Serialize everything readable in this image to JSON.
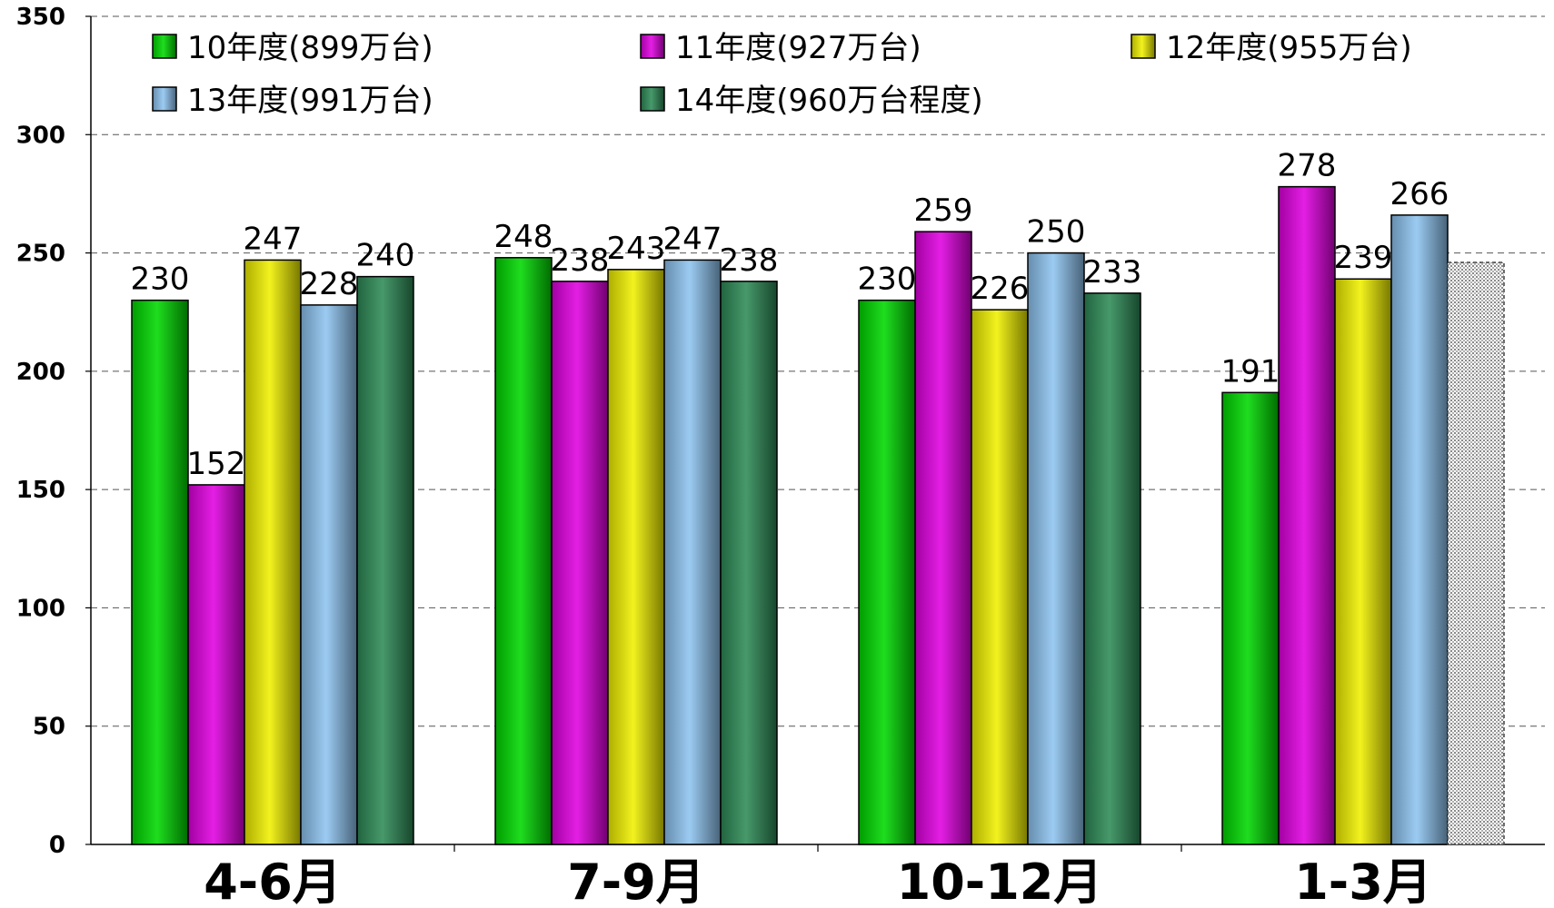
{
  "chart_data": {
    "type": "bar",
    "categories": [
      "4-6月",
      "7-9月",
      "10-12月",
      "1-3月"
    ],
    "series": [
      {
        "name": "10年度(899万台)",
        "values": [
          230,
          248,
          230,
          191
        ],
        "color": "#00d800"
      },
      {
        "name": "11年度(927万台)",
        "values": [
          152,
          238,
          259,
          278
        ],
        "color": "#e000e0"
      },
      {
        "name": "12年度(955万台)",
        "values": [
          247,
          243,
          226,
          239
        ],
        "color": "#f0f000"
      },
      {
        "name": "13年度(991万台)",
        "values": [
          228,
          247,
          250,
          266
        ],
        "color": "#8ec4f0"
      },
      {
        "name": "14年度(960万台程度)",
        "values": [
          240,
          238,
          233,
          null
        ],
        "color": "#2e8b57"
      }
    ],
    "projection": {
      "category": "1-3月",
      "series": "14年度(960万台程度)",
      "value": 246,
      "pattern": "dotted-gray"
    },
    "ylim": [
      0,
      350
    ],
    "yticks": [
      0,
      50,
      100,
      150,
      200,
      250,
      300,
      350
    ],
    "grid": true,
    "legend_position": "top"
  }
}
